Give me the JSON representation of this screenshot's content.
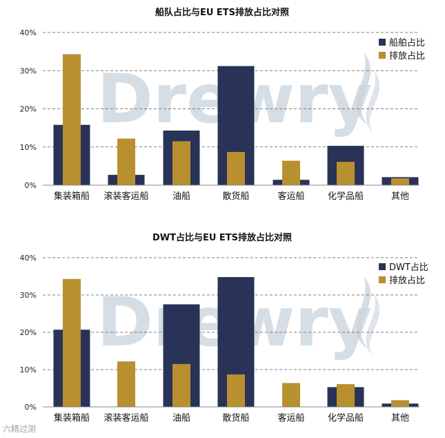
{
  "footer": {
    "watermark": "六精过测"
  },
  "colors": {
    "navy": "#283357",
    "gold": "#b8902f",
    "watermark": "#c9d3dd"
  },
  "chart_data": [
    {
      "type": "bar",
      "title": "船队占比与EU ETS排放占比对照",
      "categories": [
        "集装箱船",
        "滚装客运船",
        "油船",
        "散货船",
        "客运船",
        "化学品船",
        "其他"
      ],
      "ylim": [
        0,
        40
      ],
      "yticks": [
        "0%",
        "10%",
        "20%",
        "30%",
        "40%"
      ],
      "grid": true,
      "legend_position": "top-right",
      "watermark": "Drewry",
      "series": [
        {
          "name": "船舶占比",
          "color": "#283357",
          "values": [
            15.8,
            2.7,
            14.3,
            31.2,
            1.4,
            10.3,
            2.1
          ]
        },
        {
          "name": "排放占比",
          "color": "#b8902f",
          "values": [
            34.3,
            12.2,
            11.5,
            8.7,
            6.4,
            6.1,
            1.8
          ]
        }
      ]
    },
    {
      "type": "bar",
      "title": "DWT占比与EU ETS排放占比对照",
      "categories": [
        "集装箱船",
        "滚装客运船",
        "油船",
        "散货船",
        "客运船",
        "化学品船",
        "其他"
      ],
      "ylim": [
        0,
        40
      ],
      "yticks": [
        "0%",
        "10%",
        "20%",
        "30%",
        "40%"
      ],
      "grid": true,
      "legend_position": "top-right",
      "watermark": "Drewry",
      "series": [
        {
          "name": "DWT占比",
          "color": "#283357",
          "values": [
            20.7,
            0,
            27.5,
            34.8,
            0,
            5.3,
            0.9
          ]
        },
        {
          "name": "排放占比",
          "color": "#b8902f",
          "values": [
            34.3,
            12.2,
            11.5,
            8.7,
            6.4,
            6.1,
            1.8
          ]
        }
      ]
    }
  ]
}
